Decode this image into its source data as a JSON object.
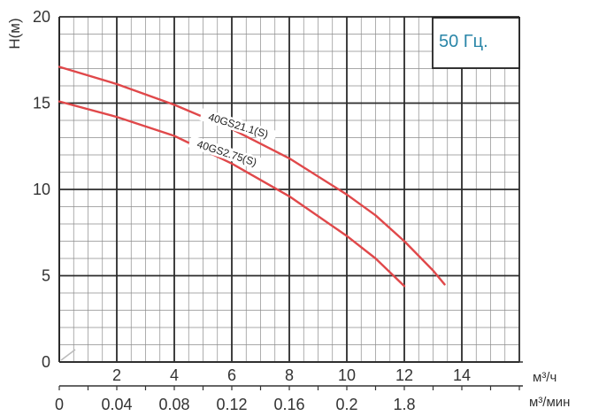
{
  "chart_data": {
    "type": "line",
    "title": "",
    "legend_text": "50 Гц.",
    "ylabel": "H(м)",
    "xlabel_primary": "м³/ч",
    "xlabel_secondary": "м³/мин",
    "xlim": [
      0,
      16
    ],
    "ylim": [
      0,
      20
    ],
    "y_ticks": [
      "0",
      "5",
      "10",
      "15",
      "20"
    ],
    "x_ticks": [
      "2",
      "4",
      "6",
      "8",
      "10",
      "12",
      "14"
    ],
    "x2_ticks": [
      "0",
      "0.04",
      "0.08",
      "0.12",
      "0.16",
      "0.2",
      "1.8"
    ],
    "grid": true,
    "series": [
      {
        "name": "40GS21.1(S)",
        "color": "#e0484a",
        "x": [
          0,
          2,
          4,
          6,
          8,
          10,
          11,
          12,
          13,
          13.4
        ],
        "y": [
          17.1,
          16.1,
          14.9,
          13.5,
          11.8,
          9.7,
          8.5,
          7.0,
          5.3,
          4.5
        ]
      },
      {
        "name": "40GS2.75(S)",
        "color": "#e0484a",
        "x": [
          0,
          2,
          4,
          6,
          8,
          10,
          11,
          12
        ],
        "y": [
          15.1,
          14.2,
          13.1,
          11.5,
          9.6,
          7.3,
          6.0,
          4.4
        ]
      }
    ]
  }
}
